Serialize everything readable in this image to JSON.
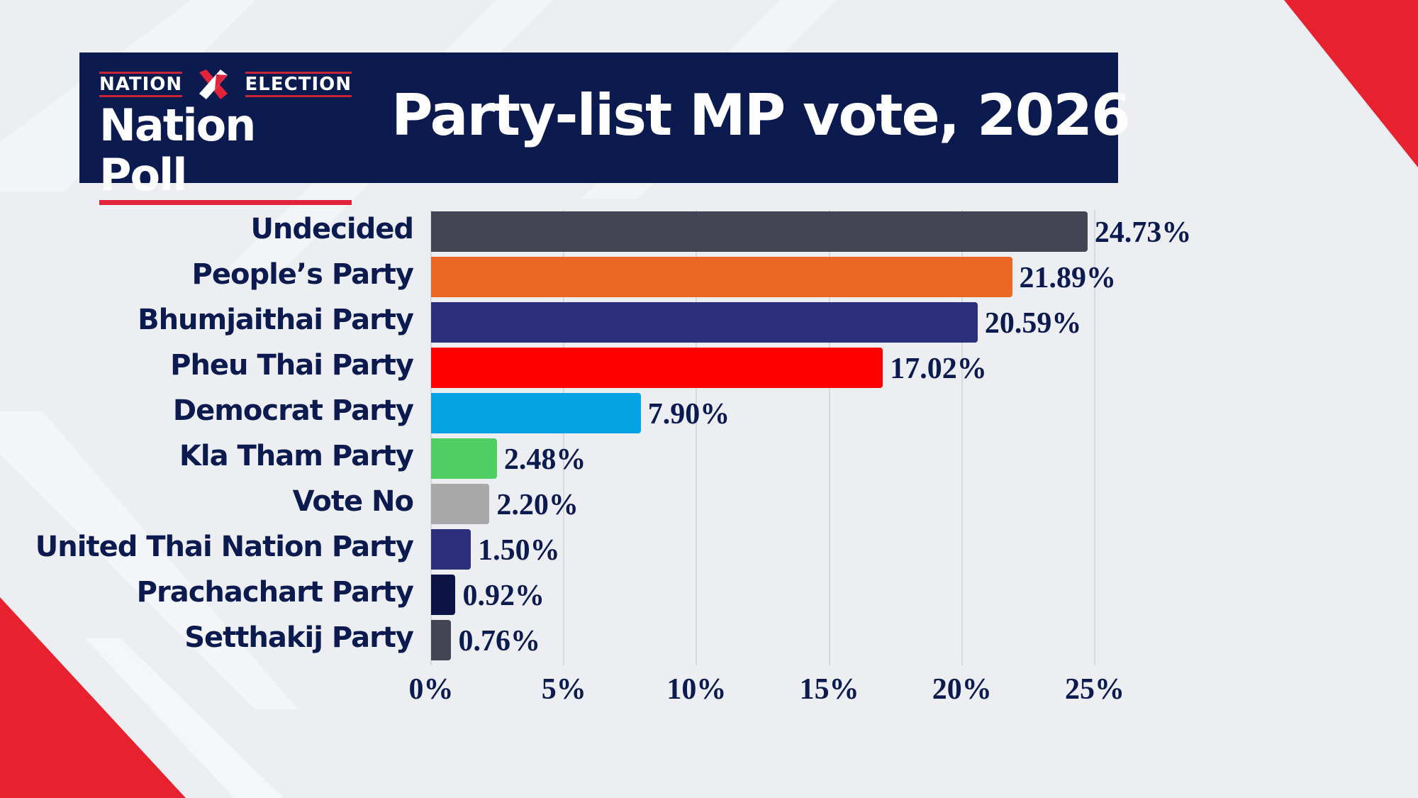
{
  "header": {
    "logo_top_left": "NATION",
    "logo_top_right": "ELECTION",
    "logo_main": "Nation Poll",
    "title": "Party-list MP vote, 2026"
  },
  "chart_data": {
    "type": "bar",
    "orientation": "horizontal",
    "title": "Party-list MP vote, 2026",
    "xlabel": "",
    "ylabel": "",
    "xlim": [
      0,
      25
    ],
    "x_ticks": [
      "0%",
      "5%",
      "10%",
      "15%",
      "20%",
      "25%"
    ],
    "grid": true,
    "categories": [
      "Undecided",
      "People’s Party",
      "Bhumjaithai Party",
      "Pheu Thai Party",
      "Democrat Party",
      "Kla Tham Party",
      "Vote No",
      "United Thai Nation Party",
      "Prachachart Party",
      "Setthakij Party"
    ],
    "values": [
      24.73,
      21.89,
      20.59,
      17.02,
      7.9,
      2.48,
      2.2,
      1.5,
      0.92,
      0.76
    ],
    "value_labels": [
      "24.73%",
      "21.89%",
      "20.59%",
      "17.02%",
      "7.90%",
      "2.48%",
      "2.20%",
      "1.50%",
      "0.92%",
      "0.76%"
    ],
    "colors": [
      "#434454",
      "#ec6724",
      "#2c2f7c",
      "#fe0000",
      "#04a3e3",
      "#4fcf63",
      "#a9a9a9",
      "#2c2f7c",
      "#0b1347",
      "#434454"
    ]
  }
}
